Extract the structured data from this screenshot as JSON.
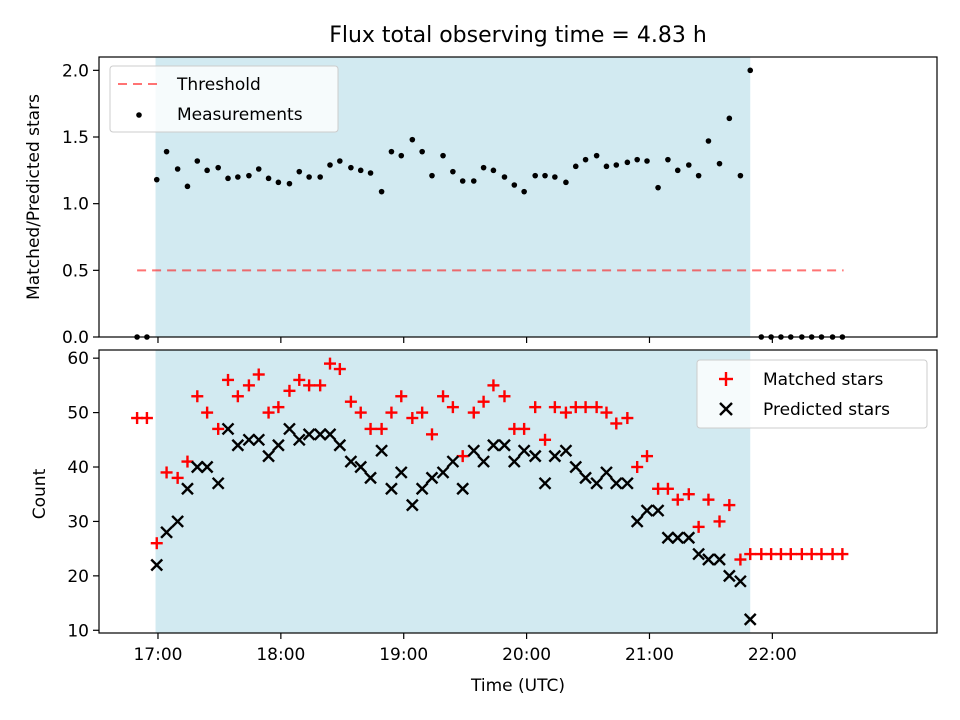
{
  "title": "Flux total observing time = 4.83 h",
  "colors": {
    "shade": "#add8e6",
    "threshold": "#ff0000",
    "measurement": "#000000",
    "matched": "#ff0000",
    "predicted": "#000000"
  },
  "chart_data": [
    {
      "type": "scatter",
      "name": "ratio-panel",
      "ylabel": "Matched/Predicted stars",
      "xlim": [
        16.52,
        23.34
      ],
      "ylim": [
        0,
        2.1
      ],
      "yticks": [
        0.0,
        0.5,
        1.0,
        1.5,
        2.0
      ],
      "ytick_labels": [
        "0.0",
        "0.5",
        "1.0",
        "1.5",
        "2.0"
      ],
      "shaded_x_range": [
        16.98,
        21.82
      ],
      "legend": {
        "position": "top-left",
        "entries": [
          "Threshold",
          "Measurements"
        ]
      },
      "threshold": {
        "name": "Threshold",
        "value": 0.5,
        "x_range": [
          16.83,
          22.58
        ]
      },
      "series": [
        {
          "name": "Measurements",
          "marker": "dot",
          "x": [
            16.83,
            16.91,
            16.99,
            17.07,
            17.16,
            17.24,
            17.32,
            17.4,
            17.49,
            17.57,
            17.65,
            17.74,
            17.82,
            17.9,
            17.98,
            18.07,
            18.15,
            18.23,
            18.32,
            18.4,
            18.48,
            18.57,
            18.65,
            18.73,
            18.82,
            18.9,
            18.98,
            19.07,
            19.15,
            19.23,
            19.32,
            19.4,
            19.48,
            19.57,
            19.65,
            19.73,
            19.82,
            19.9,
            19.98,
            20.07,
            20.15,
            20.23,
            20.32,
            20.4,
            20.48,
            20.57,
            20.65,
            20.73,
            20.82,
            20.9,
            20.98,
            21.07,
            21.15,
            21.23,
            21.32,
            21.4,
            21.48,
            21.57,
            21.65,
            21.74,
            21.82,
            21.91,
            21.99,
            22.07,
            22.15,
            22.24,
            22.32,
            22.4,
            22.49,
            22.57
          ],
          "y": [
            0.0,
            0.0,
            1.18,
            1.39,
            1.26,
            1.13,
            1.32,
            1.25,
            1.27,
            1.19,
            1.2,
            1.21,
            1.26,
            1.19,
            1.16,
            1.15,
            1.24,
            1.2,
            1.2,
            1.29,
            1.32,
            1.27,
            1.25,
            1.23,
            1.09,
            1.39,
            1.36,
            1.48,
            1.39,
            1.21,
            1.36,
            1.24,
            1.17,
            1.17,
            1.27,
            1.25,
            1.2,
            1.14,
            1.09,
            1.21,
            1.21,
            1.2,
            1.16,
            1.28,
            1.33,
            1.36,
            1.28,
            1.29,
            1.31,
            1.33,
            1.32,
            1.12,
            1.33,
            1.25,
            1.29,
            1.21,
            1.47,
            1.3,
            1.64,
            1.21,
            2.0,
            0.0,
            0.0,
            0.0,
            0.0,
            0.0,
            0.0,
            0.0,
            0.0,
            0.0
          ]
        }
      ]
    },
    {
      "type": "scatter",
      "name": "count-panel",
      "xlabel": "Time (UTC)",
      "ylabel": "Count",
      "xlim": [
        16.52,
        23.34
      ],
      "ylim": [
        9.5,
        61.5
      ],
      "xticks": [
        17,
        18,
        19,
        20,
        21,
        22
      ],
      "xtick_labels": [
        "17:00",
        "18:00",
        "19:00",
        "20:00",
        "21:00",
        "22:00"
      ],
      "yticks": [
        10,
        20,
        30,
        40,
        50,
        60
      ],
      "ytick_labels": [
        "10",
        "20",
        "30",
        "40",
        "50",
        "60"
      ],
      "shaded_x_range": [
        16.98,
        21.82
      ],
      "legend": {
        "position": "top-right",
        "entries": [
          "Matched stars",
          "Predicted stars"
        ]
      },
      "series": [
        {
          "name": "Matched stars",
          "marker": "plus",
          "x": [
            16.83,
            16.91,
            16.99,
            17.07,
            17.16,
            17.24,
            17.32,
            17.4,
            17.49,
            17.57,
            17.65,
            17.74,
            17.82,
            17.9,
            17.98,
            18.07,
            18.15,
            18.23,
            18.32,
            18.4,
            18.48,
            18.57,
            18.65,
            18.73,
            18.82,
            18.9,
            18.98,
            19.07,
            19.15,
            19.23,
            19.32,
            19.4,
            19.48,
            19.57,
            19.65,
            19.73,
            19.82,
            19.9,
            19.98,
            20.07,
            20.15,
            20.23,
            20.32,
            20.4,
            20.48,
            20.57,
            20.65,
            20.73,
            20.82,
            20.9,
            20.98,
            21.07,
            21.15,
            21.23,
            21.32,
            21.4,
            21.48,
            21.57,
            21.65,
            21.74,
            21.82,
            21.91,
            21.99,
            22.07,
            22.15,
            22.24,
            22.32,
            22.4,
            22.49,
            22.57
          ],
          "y": [
            49,
            49,
            26,
            39,
            38,
            41,
            53,
            50,
            47,
            56,
            53,
            55,
            57,
            50,
            51,
            54,
            56,
            55,
            55,
            59,
            58,
            52,
            50,
            47,
            47,
            50,
            53,
            49,
            50,
            46,
            53,
            51,
            42,
            50,
            52,
            55,
            53,
            47,
            47,
            51,
            45,
            51,
            50,
            51,
            51,
            51,
            50,
            48,
            49,
            40,
            42,
            36,
            36,
            34,
            35,
            29,
            34,
            30,
            33,
            23,
            24,
            24,
            24,
            24,
            24,
            24,
            24,
            24,
            24,
            24
          ]
        },
        {
          "name": "Predicted stars",
          "marker": "x",
          "x": [
            16.99,
            17.07,
            17.16,
            17.24,
            17.32,
            17.4,
            17.49,
            17.57,
            17.65,
            17.74,
            17.82,
            17.9,
            17.98,
            18.07,
            18.15,
            18.23,
            18.32,
            18.4,
            18.48,
            18.57,
            18.65,
            18.73,
            18.82,
            18.9,
            18.98,
            19.07,
            19.15,
            19.23,
            19.32,
            19.4,
            19.48,
            19.57,
            19.65,
            19.73,
            19.82,
            19.9,
            19.98,
            20.07,
            20.15,
            20.23,
            20.32,
            20.4,
            20.48,
            20.57,
            20.65,
            20.73,
            20.82,
            20.9,
            20.98,
            21.07,
            21.15,
            21.23,
            21.32,
            21.4,
            21.48,
            21.57,
            21.65,
            21.74,
            21.82
          ],
          "y": [
            22,
            28,
            30,
            36,
            40,
            40,
            37,
            47,
            44,
            45,
            45,
            42,
            44,
            47,
            45,
            46,
            46,
            46,
            44,
            41,
            40,
            38,
            43,
            36,
            39,
            33,
            36,
            38,
            39,
            41,
            36,
            43,
            41,
            44,
            44,
            41,
            43,
            42,
            37,
            42,
            43,
            40,
            38,
            37,
            39,
            37,
            37,
            30,
            32,
            32,
            27,
            27,
            27,
            24,
            23,
            23,
            20,
            19,
            12
          ]
        }
      ]
    }
  ]
}
